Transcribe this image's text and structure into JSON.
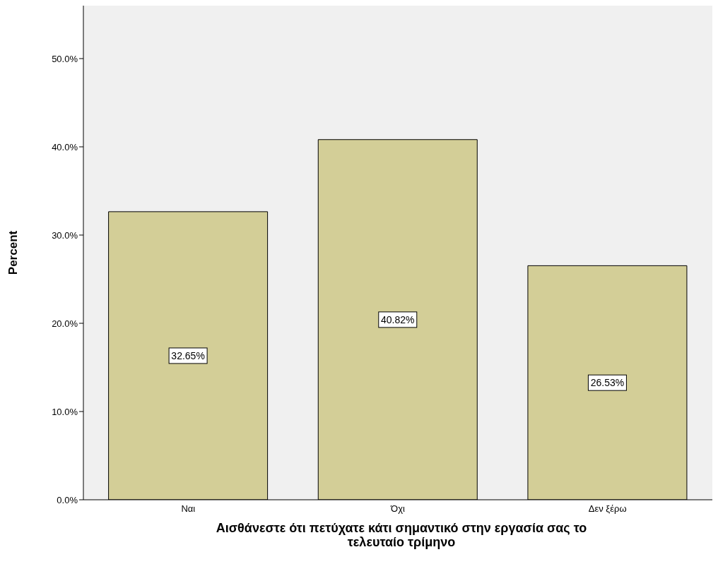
{
  "chart_data": {
    "type": "bar",
    "xlabel": "Αισθάνεστε ότι πετύχατε κάτι σημαντικό στην εργασία σας το τελευταίο τρίμηνο",
    "ylabel": "Percent",
    "categories": [
      "Ναι",
      "Όχι",
      "Δεν ξέρω"
    ],
    "values": [
      32.65,
      40.82,
      26.53
    ],
    "value_labels": [
      "32.65%",
      "40.82%",
      "26.53%"
    ],
    "color": "#d3ce97",
    "ylim": [
      0,
      56
    ],
    "yticks": [
      {
        "value": 0,
        "label": "0.0%"
      },
      {
        "value": 10,
        "label": "10.0%"
      },
      {
        "value": 20,
        "label": "20.0%"
      },
      {
        "value": 30,
        "label": "30.0%"
      },
      {
        "value": 40,
        "label": "40.0%"
      },
      {
        "value": 50,
        "label": "50.0%"
      }
    ]
  }
}
